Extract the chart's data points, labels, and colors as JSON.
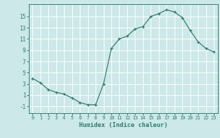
{
  "x": [
    0,
    1,
    2,
    3,
    4,
    5,
    6,
    7,
    8,
    9,
    10,
    11,
    12,
    13,
    14,
    15,
    16,
    17,
    18,
    19,
    20,
    21,
    22,
    23
  ],
  "y": [
    4.0,
    3.2,
    2.0,
    1.5,
    1.2,
    0.5,
    -0.3,
    -0.7,
    -0.7,
    3.0,
    9.3,
    11.0,
    11.5,
    12.8,
    13.2,
    15.0,
    15.5,
    16.2,
    15.8,
    14.8,
    12.5,
    10.5,
    9.3,
    8.7
  ],
  "xlabel": "Humidex (Indice chaleur)",
  "xlim": [
    -0.5,
    23.5
  ],
  "ylim": [
    -2.2,
    17.2
  ],
  "yticks": [
    -1,
    1,
    3,
    5,
    7,
    9,
    11,
    13,
    15
  ],
  "xticks": [
    0,
    1,
    2,
    3,
    4,
    5,
    6,
    7,
    8,
    9,
    10,
    11,
    12,
    13,
    14,
    15,
    16,
    17,
    18,
    19,
    20,
    21,
    22,
    23
  ],
  "line_color": "#2e7d6e",
  "marker": "+",
  "bg_color": "#cce8e8",
  "grid_color": "#ffffff",
  "tick_label_color": "#2e7d6e",
  "xlabel_color": "#2e7d6e",
  "font_family": "monospace"
}
